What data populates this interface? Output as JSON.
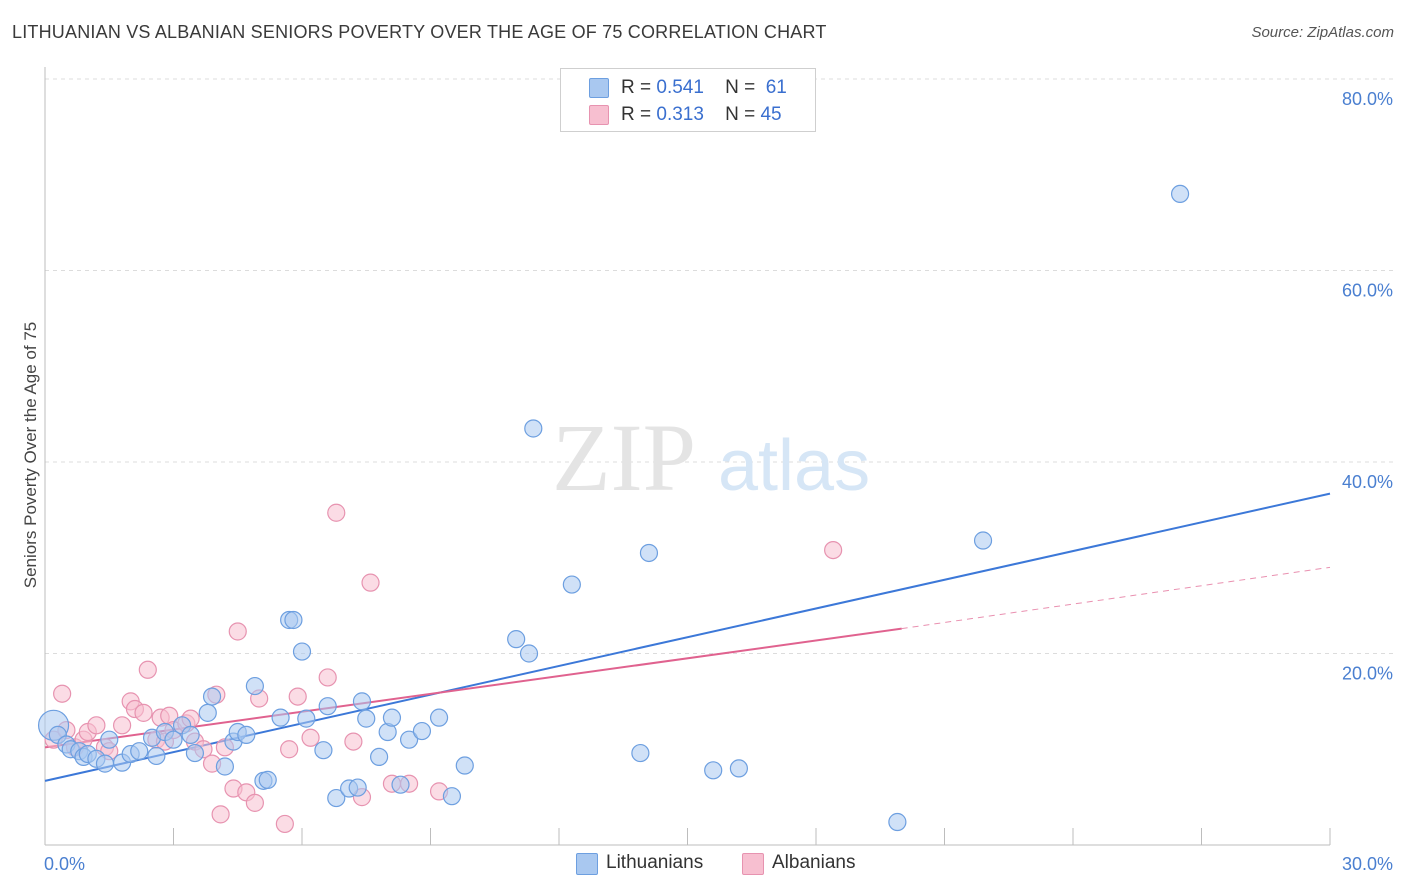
{
  "title": "LITHUANIAN VS ALBANIAN SENIORS POVERTY OVER THE AGE OF 75 CORRELATION CHART",
  "source": "Source: ZipAtlas.com",
  "watermark": {
    "zip": "ZIP",
    "atlas": "atlas"
  },
  "legend": {
    "r_label": "R =",
    "n_label": "N =",
    "rows": [
      {
        "r": "0.541",
        "n": "61",
        "color": "#a9c8f0",
        "stroke": "#6d9fe0"
      },
      {
        "r": "0.313",
        "n": "45",
        "color": "#f7bfd0",
        "stroke": "#e793b0"
      }
    ]
  },
  "bottom_legend": [
    {
      "label": "Lithuanians",
      "color": "#a9c8f0",
      "stroke": "#6d9fe0"
    },
    {
      "label": "Albanians",
      "color": "#f7bfd0",
      "stroke": "#e793b0"
    }
  ],
  "chart_data": {
    "type": "scatter",
    "title": "LITHUANIAN VS ALBANIAN SENIORS POVERTY OVER THE AGE OF 75 CORRELATION CHART",
    "xlabel": "",
    "ylabel": "Seniors Poverty Over the Age of 75",
    "xlim": [
      0,
      30
    ],
    "ylim": [
      0,
      80
    ],
    "x_tick_labels": [
      {
        "value": 0,
        "label": "0.0%"
      },
      {
        "value": 30,
        "label": "30.0%"
      }
    ],
    "y_tick_labels": [
      {
        "value": 20,
        "label": "20.0%"
      },
      {
        "value": 40,
        "label": "40.0%"
      },
      {
        "value": 60,
        "label": "60.0%"
      },
      {
        "value": 80,
        "label": "80.0%"
      }
    ],
    "series": [
      {
        "name": "Lithuanians",
        "color": "#a9c8f0",
        "stroke": "#6d9fe0",
        "trendline": {
          "x": [
            0,
            30
          ],
          "y": [
            6.7,
            36.7
          ],
          "color": "#3c78d8"
        },
        "points": [
          [
            0.2,
            12.5
          ],
          [
            0.3,
            11.5
          ],
          [
            0.5,
            10.5
          ],
          [
            0.6,
            10.0
          ],
          [
            0.8,
            9.8
          ],
          [
            0.9,
            9.2
          ],
          [
            1.0,
            9.5
          ],
          [
            1.2,
            9.0
          ],
          [
            1.4,
            8.5
          ],
          [
            1.5,
            11.0
          ],
          [
            1.8,
            8.6
          ],
          [
            2.0,
            9.5
          ],
          [
            2.2,
            9.8
          ],
          [
            2.5,
            11.2
          ],
          [
            2.6,
            9.3
          ],
          [
            2.8,
            11.8
          ],
          [
            3.0,
            11.0
          ],
          [
            3.2,
            12.5
          ],
          [
            3.4,
            11.5
          ],
          [
            3.5,
            9.6
          ],
          [
            3.8,
            13.8
          ],
          [
            3.9,
            15.5
          ],
          [
            4.2,
            8.2
          ],
          [
            4.4,
            10.8
          ],
          [
            4.5,
            11.8
          ],
          [
            4.7,
            11.5
          ],
          [
            4.9,
            16.6
          ],
          [
            5.1,
            6.7
          ],
          [
            5.2,
            6.8
          ],
          [
            5.5,
            13.3
          ],
          [
            5.7,
            23.5
          ],
          [
            5.8,
            23.5
          ],
          [
            6.0,
            20.2
          ],
          [
            6.1,
            13.2
          ],
          [
            6.5,
            9.9
          ],
          [
            6.6,
            14.5
          ],
          [
            6.8,
            4.9
          ],
          [
            7.1,
            5.9
          ],
          [
            7.3,
            6.0
          ],
          [
            7.4,
            15.0
          ],
          [
            7.5,
            13.2
          ],
          [
            7.8,
            9.2
          ],
          [
            8.0,
            11.8
          ],
          [
            8.1,
            13.3
          ],
          [
            8.3,
            6.3
          ],
          [
            8.5,
            11.0
          ],
          [
            8.8,
            11.9
          ],
          [
            9.2,
            13.3
          ],
          [
            9.5,
            5.1
          ],
          [
            9.8,
            8.3
          ],
          [
            11.0,
            21.5
          ],
          [
            11.3,
            20.0
          ],
          [
            11.4,
            43.5
          ],
          [
            12.3,
            27.2
          ],
          [
            13.9,
            9.6
          ],
          [
            14.1,
            30.5
          ],
          [
            15.6,
            7.8
          ],
          [
            16.2,
            8.0
          ],
          [
            19.9,
            2.4
          ],
          [
            21.9,
            31.8
          ],
          [
            26.5,
            68.0
          ]
        ]
      },
      {
        "name": "Albanians",
        "color": "#f7bfd0",
        "stroke": "#e793b0",
        "trendline": {
          "x": [
            0,
            20.0
          ],
          "y": [
            10.2,
            22.6
          ],
          "color": "#e0628f",
          "dashed_extension": {
            "x": [
              20.0,
              30
            ],
            "y": [
              22.6,
              29.0
            ]
          }
        },
        "points": [
          [
            0.2,
            11.0
          ],
          [
            0.4,
            15.8
          ],
          [
            0.5,
            12.0
          ],
          [
            0.7,
            10.2
          ],
          [
            0.9,
            11.0
          ],
          [
            1.0,
            11.8
          ],
          [
            1.2,
            12.5
          ],
          [
            1.4,
            10.2
          ],
          [
            1.5,
            9.8
          ],
          [
            1.8,
            12.5
          ],
          [
            2.0,
            15.0
          ],
          [
            2.1,
            14.2
          ],
          [
            2.3,
            13.8
          ],
          [
            2.4,
            18.3
          ],
          [
            2.6,
            11.0
          ],
          [
            2.7,
            13.3
          ],
          [
            2.8,
            10.8
          ],
          [
            2.9,
            13.5
          ],
          [
            3.0,
            12.0
          ],
          [
            3.3,
            12.7
          ],
          [
            3.4,
            13.2
          ],
          [
            3.5,
            10.8
          ],
          [
            3.7,
            10.0
          ],
          [
            3.9,
            8.5
          ],
          [
            4.0,
            15.7
          ],
          [
            4.1,
            3.2
          ],
          [
            4.2,
            10.2
          ],
          [
            4.4,
            5.9
          ],
          [
            4.5,
            22.3
          ],
          [
            4.7,
            5.5
          ],
          [
            4.9,
            4.4
          ],
          [
            5.0,
            15.3
          ],
          [
            5.6,
            2.2
          ],
          [
            5.7,
            10.0
          ],
          [
            5.9,
            15.5
          ],
          [
            6.2,
            11.2
          ],
          [
            6.6,
            17.5
          ],
          [
            6.8,
            34.7
          ],
          [
            7.2,
            10.8
          ],
          [
            7.4,
            5.0
          ],
          [
            7.6,
            27.4
          ],
          [
            8.1,
            6.4
          ],
          [
            8.5,
            6.4
          ],
          [
            9.2,
            5.6
          ],
          [
            18.4,
            30.8
          ]
        ]
      }
    ]
  }
}
